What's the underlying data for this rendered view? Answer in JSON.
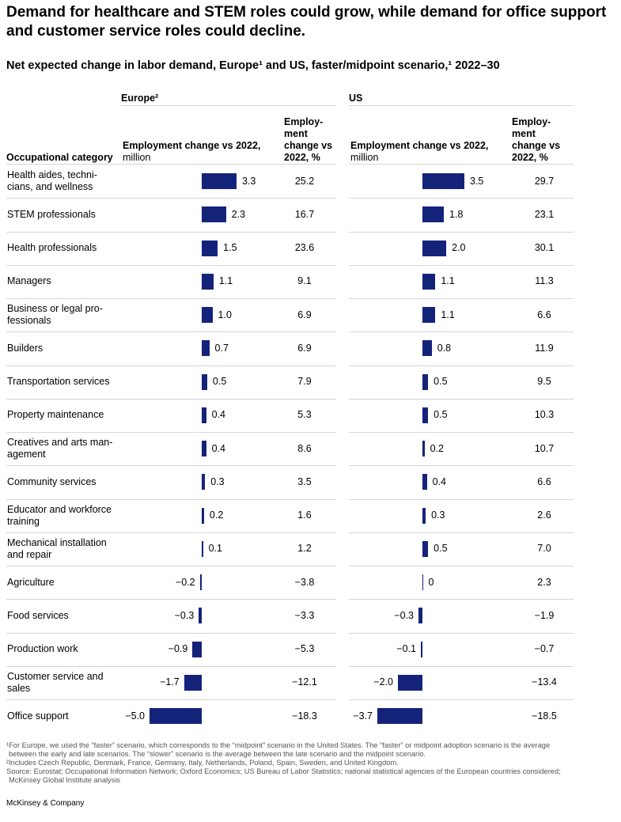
{
  "chart_data": {
    "type": "bar",
    "title": "Demand for healthcare and STEM roles could grow, while demand for office support and customer service roles could decline.",
    "subtitle": "Net expected change in labor demand, Europe¹ and US, faster/midpoint scenario,¹ 2022–30",
    "category_header": "Occupational category",
    "categories": [
      "Health aides, techni-\ncians, and wellness",
      "STEM professionals",
      "Health professionals",
      "Managers",
      "Business or legal pro-\nfessionals",
      "Builders",
      "Transportation services",
      "Property maintenance",
      "Creatives and arts man-\nagement",
      "Community services",
      "Educator and workforce\ntraining",
      "Mechanical installation\nand repair",
      "Agriculture",
      "Food services",
      "Production work",
      "Customer service and\nsales",
      "Office support"
    ],
    "series": [
      {
        "name": "Europe²",
        "color": "#14237a",
        "value_header": "Employment change vs 2022,",
        "value_unit": "million",
        "values": [
          3.3,
          2.3,
          1.5,
          1.1,
          1.0,
          0.7,
          0.5,
          0.4,
          0.4,
          0.3,
          0.2,
          0.1,
          -0.2,
          -0.3,
          -0.9,
          -1.7,
          -5.0
        ],
        "value_labels": [
          "3.3",
          "2.3",
          "1.5",
          "1.1",
          "1.0",
          "0.7",
          "0.5",
          "0.4",
          "0.4",
          "0.3",
          "0.2",
          "0.1",
          "−0.2",
          "−0.3",
          "−0.9",
          "−1.7",
          "−5.0"
        ],
        "pct_header": "Employ-\nment\nchange vs\n2022, %",
        "pct": [
          "25.2",
          "16.7",
          "23.6",
          "9.1",
          "6.9",
          "6.9",
          "7.9",
          "5.3",
          "8.6",
          "3.5",
          "1.6",
          "1.2",
          "−3.8",
          "−3.3",
          "−5.3",
          "−12.1",
          "−18.3"
        ]
      },
      {
        "name": "US",
        "color": "#14237a",
        "value_header": "Employment change vs 2022,",
        "value_unit": "million",
        "values": [
          3.5,
          1.8,
          2.0,
          1.1,
          1.1,
          0.8,
          0.5,
          0.5,
          0.2,
          0.4,
          0.3,
          0.5,
          0,
          -0.3,
          -0.1,
          -2.0,
          -3.7
        ],
        "value_labels": [
          "3.5",
          "1.8",
          "2.0",
          "1.1",
          "1.1",
          "0.8",
          "0.5",
          "0.5",
          "0.2",
          "0.4",
          "0.3",
          "0.5",
          "0",
          "−0.3",
          "−0.1",
          "−2.0",
          "−3.7"
        ],
        "pct_header": "Employ-\nment\nchange vs\n2022, %",
        "pct": [
          "29.7",
          "23.1",
          "30.1",
          "11.3",
          "6.6",
          "11.9",
          "9.5",
          "10.3",
          "10.7",
          "6.6",
          "2.6",
          "7.0",
          "2.3",
          "−1.9",
          "−0.7",
          "−13.4",
          "−18.5"
        ]
      }
    ],
    "footnotes": [
      "¹For Europe, we used the “faster” scenario, which corresponds to the “midpoint” scenario in the United States. The “faster” or midpoint adoption scenario is the average between the early and late scenarios. The “slower” scenario is the average between the late scenario and the midpoint scenario.",
      "²Includes Czech Republic, Denmark, France, Germany, Italy, Netherlands, Poland, Spain, Sweden, and United Kingdom.",
      "Source: Eurostat; Occupational Information Network; Oxford Economics; US Bureau of Labor Statistics; national statistical agencies of the European countries considered; McKinsey Global Institute analysis"
    ],
    "brand": "McKinsey & Company"
  }
}
